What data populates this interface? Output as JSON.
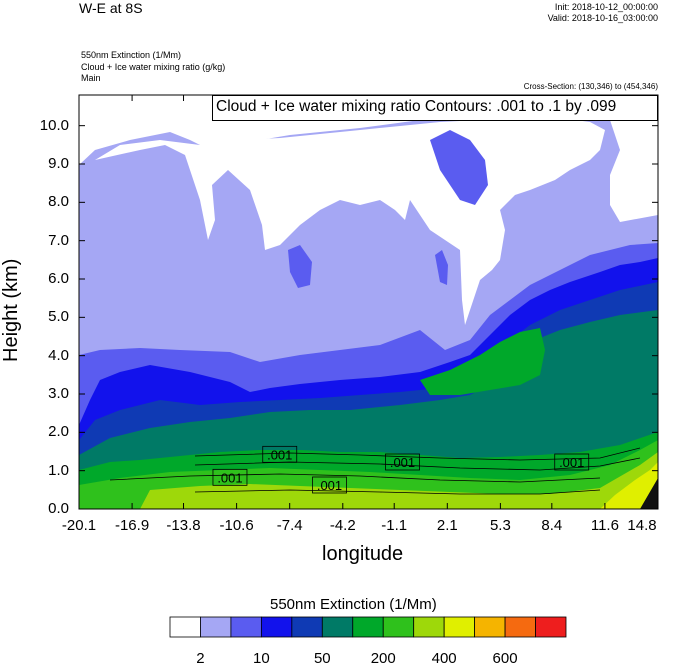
{
  "header": {
    "title": "W-E at 8S",
    "init": "Init: 2018-10-12_00:00:00",
    "valid": "Valid: 2018-10-16_03:00:00",
    "field1": "550nm Extinction   (1/Mm)",
    "field2": "Cloud + Ice water mixing ratio   (g/kg)",
    "field3": "Main",
    "cross_section": "Cross-Section: (130,346) to (454,346)"
  },
  "chart_data": {
    "type": "heatmap",
    "title": "W-E at 8S",
    "xlabel": "longitude",
    "ylabel": "Height (km)",
    "xlim": [
      -20.1,
      14.8
    ],
    "ylim": [
      0.0,
      10.8
    ],
    "x_ticks": [
      "-20.1",
      "-16.9",
      "-13.8",
      "-10.6",
      "-7.4",
      "-4.2",
      "-1.1",
      "2.1",
      "5.3",
      "8.4",
      "11.6",
      "14.8"
    ],
    "y_ticks": [
      "0.0",
      "1.0",
      "2.0",
      "3.0",
      "4.0",
      "5.0",
      "6.0",
      "7.0",
      "8.0",
      "9.0",
      "10.0"
    ],
    "contour_note": "Cloud + Ice water mixing ratio Contours: .001 to .1 by .099",
    "contour_labels": [
      {
        "text": ".001",
        "x": -8.0,
        "y": 1.4
      },
      {
        "text": ".001",
        "x": -11.0,
        "y": 0.8
      },
      {
        "text": ".001",
        "x": -5.0,
        "y": 0.6
      },
      {
        "text": ".001",
        "x": -0.6,
        "y": 1.2
      },
      {
        "text": ".001",
        "x": 9.6,
        "y": 1.2
      }
    ],
    "colorbar": {
      "title": "550nm Extinction  (1/Mm)",
      "colors": [
        "#ffffff",
        "#a5a7f4",
        "#5a5cf0",
        "#1212ec",
        "#0f3ab4",
        "#007a66",
        "#00a82a",
        "#2fc11c",
        "#9ed80a",
        "#e0ef00",
        "#f5b400",
        "#f56a10",
        "#ee1e1e"
      ],
      "labels": [
        "2",
        "10",
        "50",
        "200",
        "400",
        "600"
      ]
    },
    "grid": false
  }
}
